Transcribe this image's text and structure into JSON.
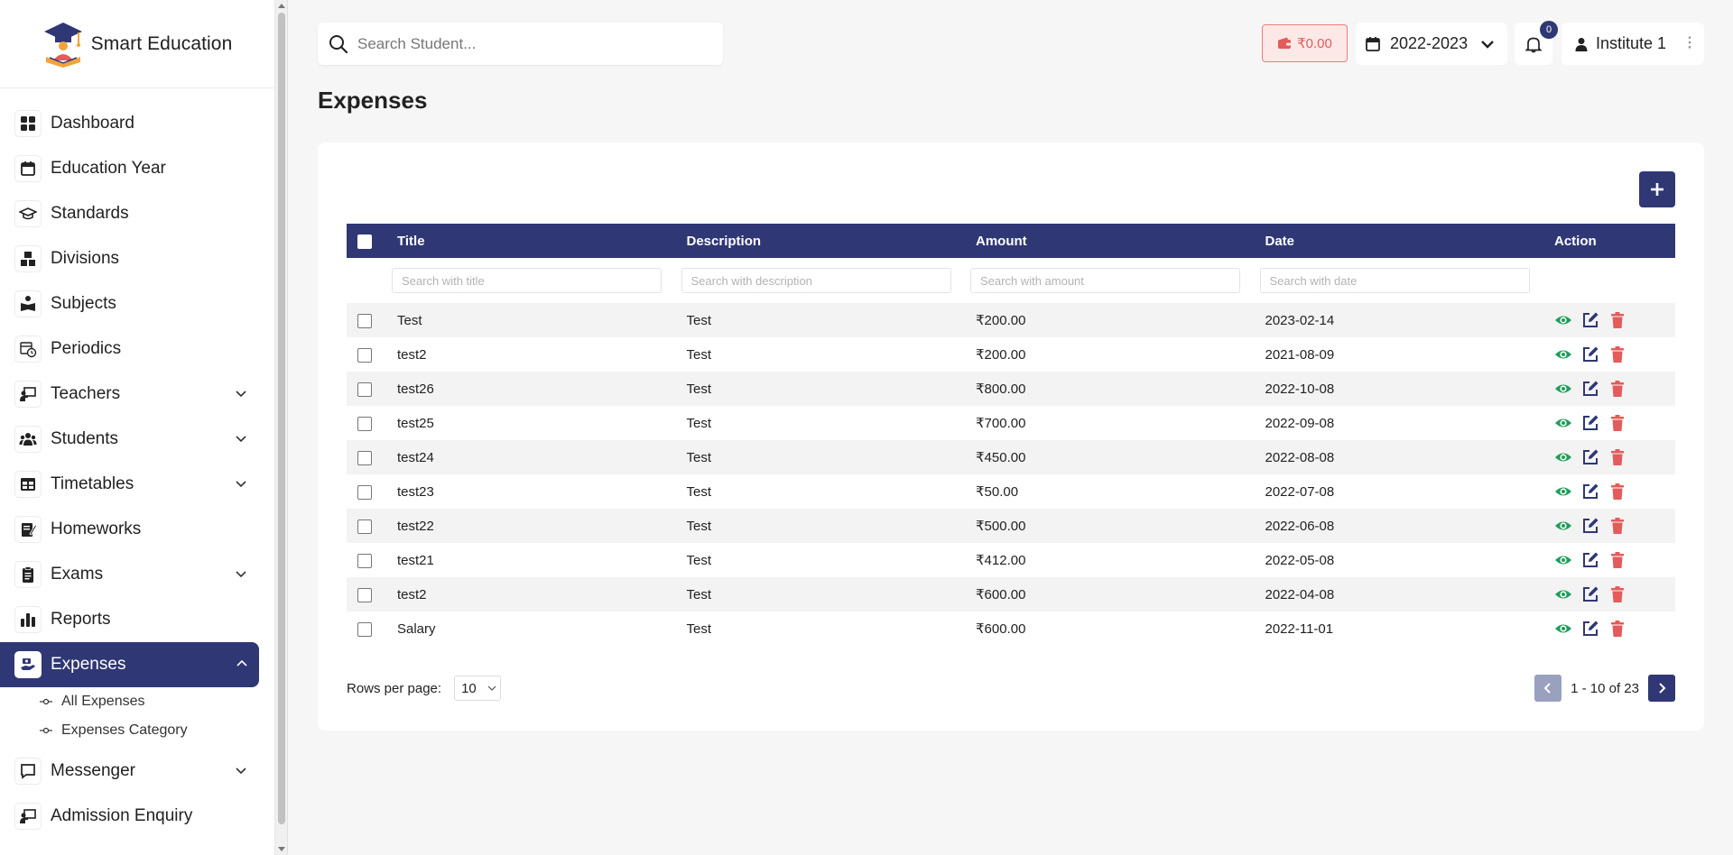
{
  "brand": {
    "name": "Smart Education"
  },
  "sidebar": {
    "items": [
      {
        "label": "Dashboard",
        "icon": "dashboard-icon"
      },
      {
        "label": "Education Year",
        "icon": "calendar-icon"
      },
      {
        "label": "Standards",
        "icon": "graduation-cap-icon"
      },
      {
        "label": "Divisions",
        "icon": "blocks-icon"
      },
      {
        "label": "Subjects",
        "icon": "book-reader-icon"
      },
      {
        "label": "Periodics",
        "icon": "calendar-clock-icon"
      },
      {
        "label": "Teachers",
        "icon": "teacher-icon",
        "expandable": true
      },
      {
        "label": "Students",
        "icon": "users-icon",
        "expandable": true
      },
      {
        "label": "Timetables",
        "icon": "table-icon",
        "expandable": true
      },
      {
        "label": "Homeworks",
        "icon": "homework-icon"
      },
      {
        "label": "Exams",
        "icon": "clipboard-icon",
        "expandable": true
      },
      {
        "label": "Reports",
        "icon": "bar-chart-icon"
      },
      {
        "label": "Expenses",
        "icon": "hand-money-icon",
        "expandable": true,
        "active": true
      },
      {
        "label": "Messenger",
        "icon": "message-icon",
        "expandable": true
      },
      {
        "label": "Admission Enquiry",
        "icon": "enquiry-icon"
      }
    ],
    "sub_items": [
      "All Expenses",
      "Expenses Category"
    ]
  },
  "topbar": {
    "search_placeholder": "Search Student...",
    "wallet_amount": "₹0.00",
    "year": "2022-2023",
    "notification_count": "0",
    "user": "Institute 1"
  },
  "page": {
    "title": "Expenses"
  },
  "table": {
    "headers": {
      "title": "Title",
      "description": "Description",
      "amount": "Amount",
      "date": "Date",
      "action": "Action"
    },
    "filters": {
      "title": "Search with title",
      "description": "Search with description",
      "amount": "Search with amount",
      "date": "Search with date"
    },
    "rows": [
      {
        "title": "Test",
        "description": "Test",
        "amount": "₹200.00",
        "date": "2023-02-14"
      },
      {
        "title": "test2",
        "description": "Test",
        "amount": "₹200.00",
        "date": "2021-08-09"
      },
      {
        "title": "test26",
        "description": "Test",
        "amount": "₹800.00",
        "date": "2022-10-08"
      },
      {
        "title": "test25",
        "description": "Test",
        "amount": "₹700.00",
        "date": "2022-09-08"
      },
      {
        "title": "test24",
        "description": "Test",
        "amount": "₹450.00",
        "date": "2022-08-08"
      },
      {
        "title": "test23",
        "description": "Test",
        "amount": "₹50.00",
        "date": "2022-07-08"
      },
      {
        "title": "test22",
        "description": "Test",
        "amount": "₹500.00",
        "date": "2022-06-08"
      },
      {
        "title": "test21",
        "description": "Test",
        "amount": "₹412.00",
        "date": "2022-05-08"
      },
      {
        "title": "test2",
        "description": "Test",
        "amount": "₹600.00",
        "date": "2022-04-08"
      },
      {
        "title": "Salary",
        "description": "Test",
        "amount": "₹600.00",
        "date": "2022-11-01"
      }
    ]
  },
  "pagination": {
    "rows_per_page_label": "Rows per page:",
    "rows_per_page": "10",
    "range": "1 - 10 of 23"
  },
  "colors": {
    "primary": "#2f3775",
    "view": "#1e9e5a",
    "edit": "#2f3775",
    "delete": "#e45b5b"
  }
}
